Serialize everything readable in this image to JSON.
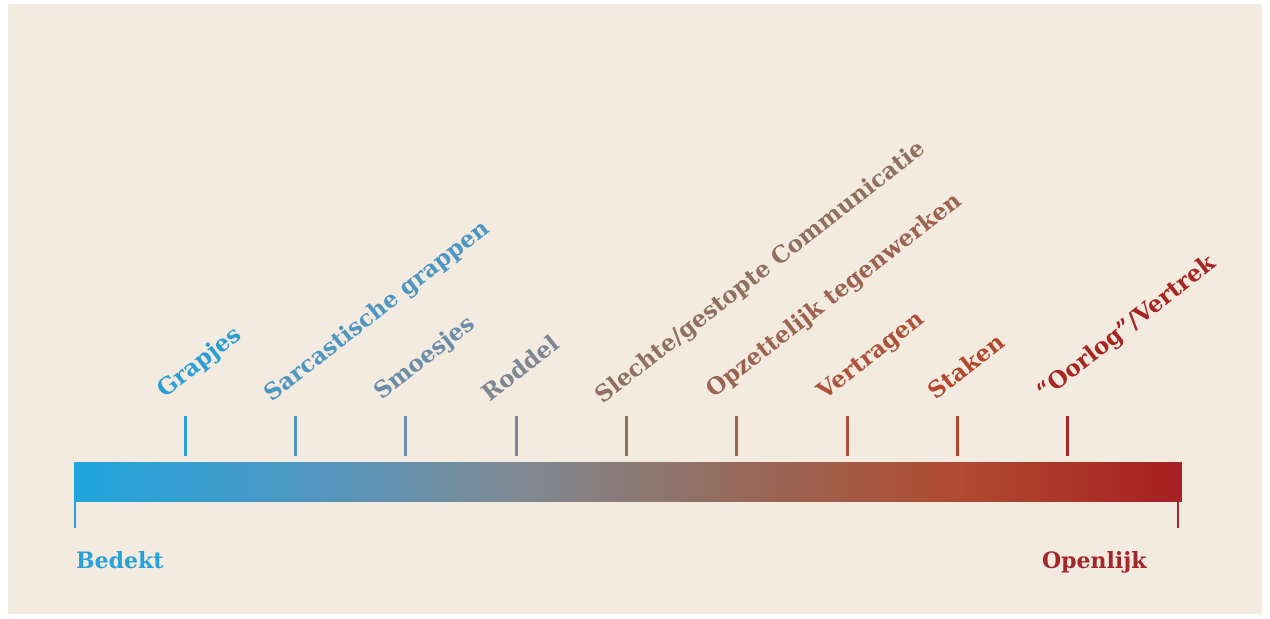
{
  "spectrum": {
    "items": [
      {
        "label": "Grapjes",
        "color": "#2a9fd6"
      },
      {
        "label": "Sarcastische grappen",
        "color": "#4e97c3"
      },
      {
        "label": "Smoesjes",
        "color": "#6a8ea9"
      },
      {
        "label": "Roddel",
        "color": "#7d8791"
      },
      {
        "label": "Slechte/gestopte Communicatie",
        "color": "#90705f"
      },
      {
        "label": "Opzettelijk tegenwerken",
        "color": "#9e6350"
      },
      {
        "label": "Vertragen",
        "color": "#ad5238"
      },
      {
        "label": "Staken",
        "color": "#b4482b"
      },
      {
        "label": "“Oorlog”/Vertrek",
        "color": "#a92522"
      }
    ],
    "start_label": "Bedekt",
    "end_label": "Openlijk",
    "start_color": "#2aa1d8",
    "end_color": "#a3282a"
  }
}
